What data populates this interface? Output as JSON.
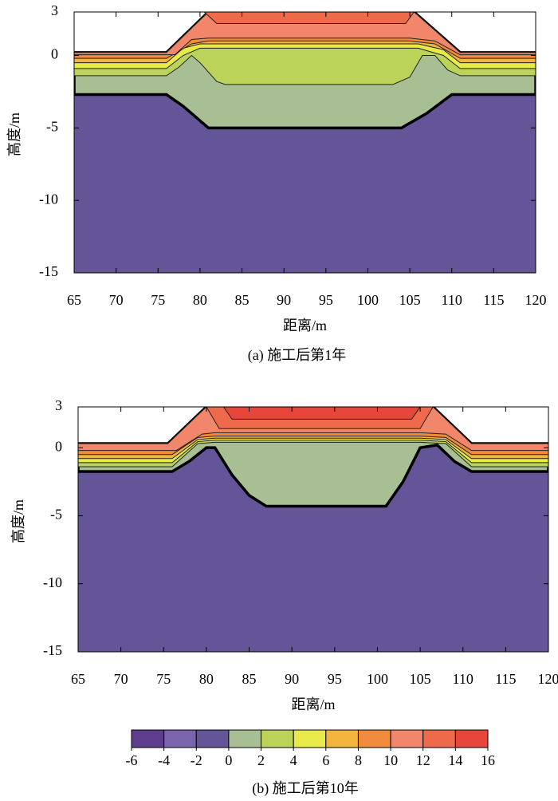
{
  "chart_data": [
    {
      "type": "contour",
      "title": "(a) 施工后第1年",
      "xlabel": "距离/m",
      "ylabel": "高度/m",
      "xlim": [
        65,
        120
      ],
      "ylim": [
        -15,
        3
      ],
      "xticks": [
        65,
        70,
        75,
        80,
        85,
        90,
        95,
        100,
        105,
        110,
        115,
        120
      ],
      "yticks": [
        -15,
        -10,
        -5,
        0,
        3
      ],
      "regions": [
        {
          "level": -2,
          "x": [
            65,
            120,
            120,
            111,
            105.5,
            81,
            76,
            65
          ],
          "y": [
            -15,
            -15,
            0.2,
            0.2,
            3,
            3,
            0.2,
            0.2
          ]
        },
        {
          "level": 0,
          "x": [
            65,
            76,
            78,
            81,
            104,
            107,
            110,
            120,
            120,
            111,
            105.5,
            81,
            76,
            65
          ],
          "y": [
            -2.7,
            -2.7,
            -3.5,
            -5,
            -5,
            -4,
            -2.7,
            -2.7,
            0.2,
            0.2,
            3,
            3,
            0.2,
            0.2
          ]
        },
        {
          "level": 2,
          "x": [
            65,
            76,
            77.5,
            79,
            80,
            82,
            83,
            103,
            105,
            106.5,
            108,
            109.5,
            111,
            120,
            120,
            111,
            105.5,
            81,
            76,
            65
          ],
          "y": [
            -1.4,
            -1.4,
            -0.8,
            0,
            -0.5,
            -1.8,
            -2,
            -2,
            -1.5,
            0,
            0,
            -1,
            -1.4,
            -1.4,
            0.2,
            0.2,
            3,
            3,
            0.2,
            0.2
          ]
        },
        {
          "level": 4,
          "x": [
            65,
            76,
            78,
            80,
            106,
            109,
            111,
            120,
            120,
            111,
            105.5,
            81,
            76,
            65
          ],
          "y": [
            -0.9,
            -0.9,
            0,
            0.5,
            0.5,
            0,
            -0.9,
            -0.9,
            0.2,
            0.2,
            3,
            3,
            0.2,
            0.2
          ]
        },
        {
          "level": 6,
          "x": [
            65,
            76,
            78,
            80,
            106,
            109,
            111,
            120,
            120,
            111,
            105.5,
            81,
            76,
            65
          ],
          "y": [
            -0.5,
            -0.5,
            0.5,
            0.8,
            0.8,
            0.4,
            -0.5,
            -0.5,
            0.2,
            0.2,
            3,
            3,
            0.2,
            0.2
          ]
        },
        {
          "level": 8,
          "x": [
            65,
            76,
            79,
            81,
            105,
            108,
            111,
            120,
            120,
            111,
            105.5,
            81,
            76,
            65
          ],
          "y": [
            -0.2,
            -0.2,
            0.8,
            1,
            1,
            0.8,
            -0.2,
            -0.2,
            0.2,
            0.2,
            3,
            3,
            0.2,
            0.2
          ]
        },
        {
          "level": 10,
          "x": [
            65,
            77,
            79,
            81,
            105,
            108,
            111,
            120,
            120,
            111,
            105.5,
            81,
            76,
            65
          ],
          "y": [
            0.05,
            0.05,
            1.1,
            1.2,
            1.2,
            1,
            0.05,
            0.05,
            0.2,
            0.2,
            3,
            3,
            0.2,
            0.2
          ]
        },
        {
          "level": 12,
          "x": [
            80.5,
            82,
            104.5,
            105.5
          ],
          "y": [
            3,
            2.2,
            2.2,
            3
          ]
        }
      ]
    },
    {
      "type": "contour",
      "title": "(b) 施工后第10年",
      "xlabel": "距离/m",
      "ylabel": "高度/m",
      "xlim": [
        65,
        120
      ],
      "ylim": [
        -15,
        3
      ],
      "xticks": [
        65,
        70,
        75,
        80,
        85,
        90,
        95,
        100,
        105,
        110,
        115,
        120
      ],
      "yticks": [
        -15,
        -10,
        -5,
        0,
        3
      ],
      "regions": [
        {
          "level": -2,
          "x": [
            65,
            120,
            120,
            111,
            106.5,
            80,
            75.5,
            65
          ],
          "y": [
            -15,
            -15,
            0.3,
            0.3,
            3,
            3,
            0.3,
            0.3
          ]
        },
        {
          "level": 0,
          "x": [
            65,
            76,
            78,
            80,
            81,
            83,
            85,
            87,
            101,
            103,
            105,
            107,
            109,
            111,
            120,
            120,
            111,
            106.5,
            80,
            75.5,
            65
          ],
          "y": [
            -1.75,
            -1.75,
            -1,
            0,
            0,
            -2,
            -3.5,
            -4.3,
            -4.3,
            -2.5,
            0,
            0.2,
            -1,
            -1.75,
            -1.75,
            0.3,
            0.3,
            3,
            3,
            0.3,
            0.3
          ]
        },
        {
          "level": 2,
          "x": [
            65,
            76,
            79,
            81,
            105,
            108,
            111,
            120,
            120,
            111,
            106.5,
            80,
            75.5,
            65
          ],
          "y": [
            -1.4,
            -1.4,
            0.3,
            0.4,
            0.4,
            0.3,
            -1.4,
            -1.4,
            0.3,
            0.3,
            3,
            3,
            0.3,
            0.3
          ]
        },
        {
          "level": 4,
          "x": [
            65,
            76,
            79,
            81,
            105,
            108,
            111,
            120,
            120,
            111,
            106.5,
            80,
            75.5,
            65
          ],
          "y": [
            -1.1,
            -1.1,
            0.45,
            0.55,
            0.55,
            0.45,
            -1.1,
            -1.1,
            0.3,
            0.3,
            3,
            3,
            0.3,
            0.3
          ]
        },
        {
          "level": 6,
          "x": [
            65,
            76,
            79,
            81,
            105,
            108,
            111,
            120,
            120,
            111,
            106.5,
            80,
            75.5,
            65
          ],
          "y": [
            -0.8,
            -0.8,
            0.6,
            0.7,
            0.7,
            0.6,
            -0.8,
            -0.8,
            0.3,
            0.3,
            3,
            3,
            0.3,
            0.3
          ]
        },
        {
          "level": 8,
          "x": [
            65,
            76,
            79,
            81,
            105,
            108,
            111,
            120,
            120,
            111,
            106.5,
            80,
            75.5,
            65
          ],
          "y": [
            -0.5,
            -0.5,
            0.75,
            0.85,
            0.85,
            0.75,
            -0.5,
            -0.5,
            0.3,
            0.3,
            3,
            3,
            0.3,
            0.3
          ]
        },
        {
          "level": 10,
          "x": [
            65,
            76.5,
            79.5,
            81,
            105,
            108,
            111,
            120,
            120,
            111,
            106.5,
            80,
            75.5,
            65
          ],
          "y": [
            -0.2,
            -0.2,
            1,
            1.1,
            1.1,
            1,
            -0.2,
            -0.2,
            0.3,
            0.3,
            3,
            3,
            0.3,
            0.3
          ]
        },
        {
          "level": 12,
          "x": [
            80,
            81.5,
            105,
            106.5
          ],
          "y": [
            3,
            1.4,
            1.4,
            3
          ]
        },
        {
          "level": 14,
          "x": [
            82,
            83,
            104,
            105
          ],
          "y": [
            3,
            2.1,
            2.1,
            3
          ]
        }
      ],
      "colorbar": {
        "levels": [
          -6,
          -4,
          -2,
          0,
          2,
          4,
          6,
          8,
          10,
          12,
          14,
          16
        ],
        "colors": [
          "#5e3c8e",
          "#7a64ae",
          "#635597",
          "#a8bf94",
          "#bcd35a",
          "#e8ea4a",
          "#f2b43c",
          "#f08a3c",
          "#f2866a",
          "#ee6a4a",
          "#e8463a"
        ]
      }
    }
  ]
}
